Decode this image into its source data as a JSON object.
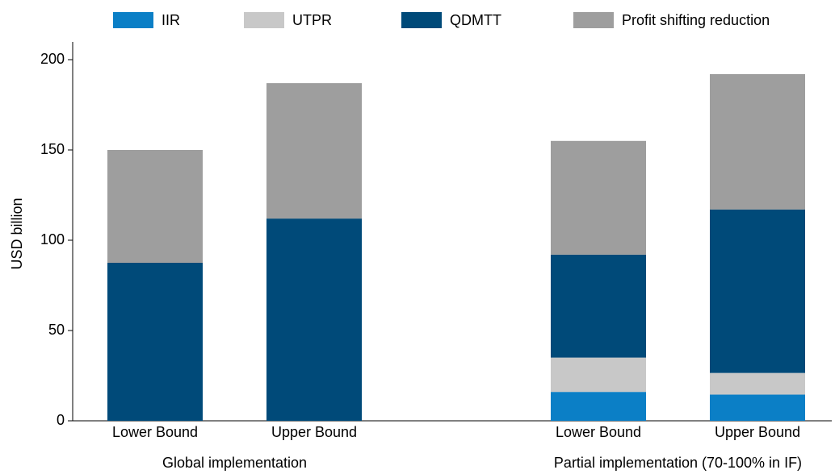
{
  "chart_data": {
    "type": "stacked_bar",
    "y_label": "USD billion",
    "categories": [
      "Lower Bound",
      "Upper Bound",
      "Lower Bound",
      "Upper Bound"
    ],
    "groups": [
      "Global implementation",
      "Partial implementation (70-100% in IF)"
    ],
    "series": [
      {
        "name": "IIR",
        "color": "#0b7fc6",
        "values": [
          0,
          0,
          16,
          14.5
        ]
      },
      {
        "name": "UTPR",
        "color": "#c8c8c8",
        "values": [
          0,
          0,
          19,
          12
        ]
      },
      {
        "name": "QDMTT",
        "color": "#004a79",
        "values": [
          87.5,
          112,
          57,
          90.5
        ]
      },
      {
        "name": "Profit shifting reduction",
        "color": "#9e9e9e",
        "values": [
          62.5,
          75,
          63,
          75
        ]
      }
    ],
    "ylim": [
      0,
      200
    ],
    "yticks": [
      0,
      50,
      100,
      150,
      200
    ],
    "grid": false
  }
}
